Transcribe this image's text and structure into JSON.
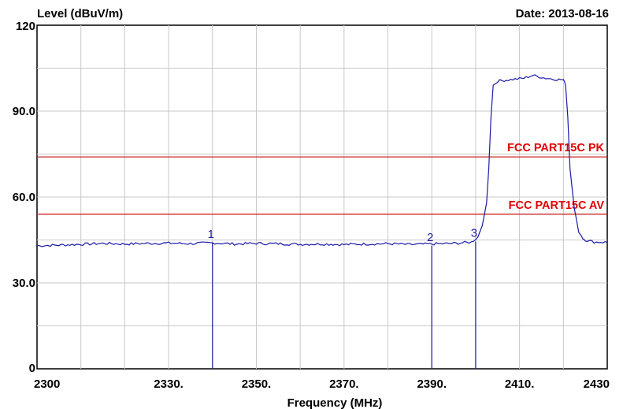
{
  "chart_data": {
    "type": "line",
    "ylabel": "Level (dBuV/m)",
    "xlabel": "Frequency (MHz)",
    "date_text": "Date: 2013-08-16",
    "xlim": [
      2300,
      2430
    ],
    "ylim": [
      0,
      120
    ],
    "grid": true,
    "x_ticks": [
      {
        "value": 2300,
        "label": "2300"
      },
      {
        "value": 2330,
        "label": "2330."
      },
      {
        "value": 2350,
        "label": "2350."
      },
      {
        "value": 2370,
        "label": "2370."
      },
      {
        "value": 2390,
        "label": "2390."
      },
      {
        "value": 2410,
        "label": "2410."
      },
      {
        "value": 2430,
        "label": "2430"
      }
    ],
    "y_ticks": [
      {
        "value": 0,
        "label": "0"
      },
      {
        "value": 30,
        "label": "30.0"
      },
      {
        "value": 60,
        "label": "60.0"
      },
      {
        "value": 90,
        "label": "90.0"
      },
      {
        "value": 120,
        "label": "120"
      }
    ],
    "limit_lines": [
      {
        "name": "FCC PART15C  PK",
        "value": 74,
        "color": "#cc2a2a"
      },
      {
        "name": "FCC PART15C  AV",
        "value": 54,
        "color": "#cc2a2a"
      }
    ],
    "markers": [
      {
        "label": "1",
        "x": 2340,
        "y": 44
      },
      {
        "label": "2",
        "x": 2390,
        "y": 43
      },
      {
        "label": "3",
        "x": 2400,
        "y": 44.5
      }
    ],
    "series": [
      {
        "color": "#1a1aa8",
        "x": [
          2300,
          2305,
          2310,
          2315,
          2320,
          2325,
          2330,
          2335,
          2340,
          2345,
          2350,
          2355,
          2360,
          2365,
          2370,
          2375,
          2380,
          2385,
          2390,
          2395,
          2399,
          2400.5,
          2401.5,
          2402.5,
          2403,
          2403.5,
          2404,
          2405,
          2408,
          2411,
          2413,
          2416,
          2419,
          2420,
          2420.5,
          2421,
          2421.5,
          2422.5,
          2423.5,
          2424.5,
          2425,
          2427,
          2430
        ],
        "y": [
          43,
          43.2,
          43.5,
          43.8,
          43.6,
          43.8,
          43.9,
          43.7,
          44.0,
          43.6,
          43.8,
          43.7,
          43.5,
          43.6,
          43.4,
          43.6,
          43.7,
          43.4,
          43.6,
          43.8,
          44.2,
          46,
          50,
          58,
          70,
          88,
          99,
          100.5,
          101,
          101.5,
          102.5,
          101.5,
          101,
          101,
          99,
          88,
          70,
          56,
          48,
          45.5,
          45,
          44.3,
          44.2
        ]
      }
    ],
    "colors": {
      "trace": "#1a1aa8",
      "limit": "#cc2a2a",
      "limit_text": "#e00000",
      "grid": "#c8c8c8"
    }
  }
}
